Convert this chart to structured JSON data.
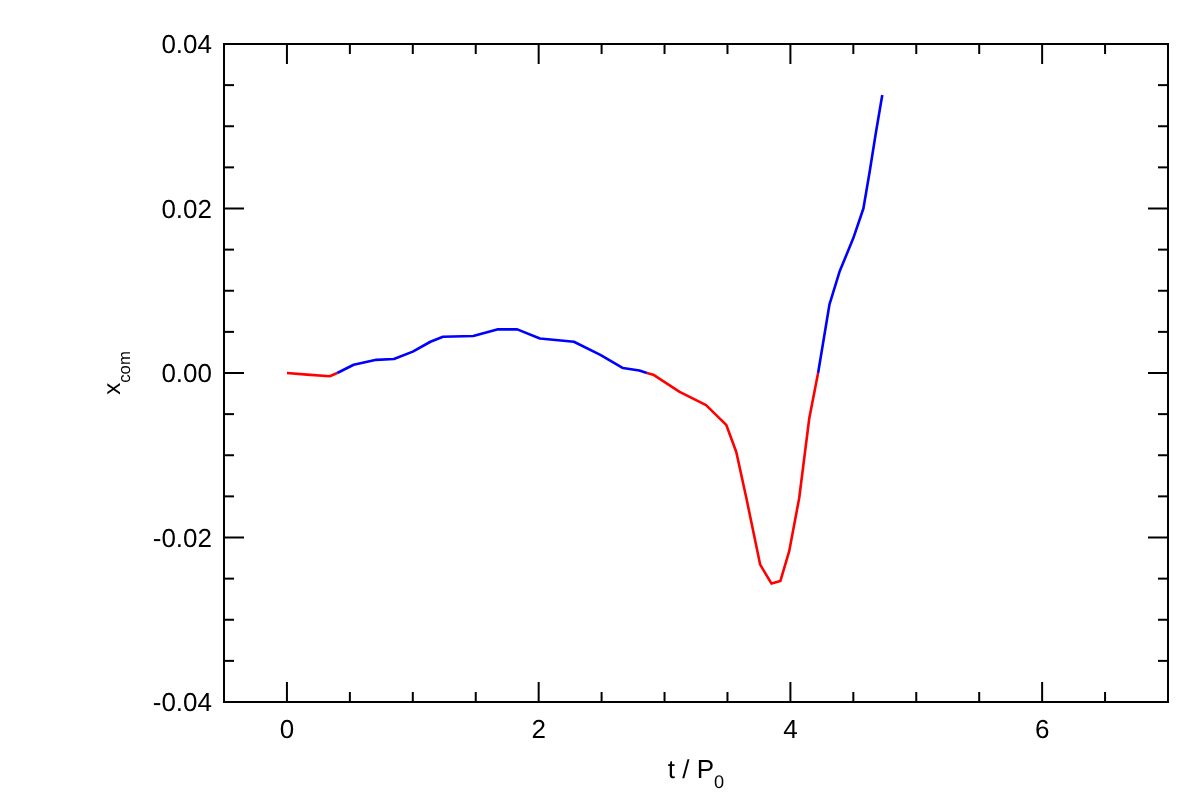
{
  "chart_data": {
    "type": "line",
    "xlabel": "t / P$_{0}$",
    "ylabel": "x$_{com}$",
    "x": [
      0,
      0.16,
      0.34,
      0.4,
      0.53,
      0.71,
      0.85,
      1.0,
      1.14,
      1.24,
      1.48,
      1.67,
      1.83,
      2.01,
      2.28,
      2.49,
      2.67,
      2.8,
      2.86,
      2.91,
      3.12,
      3.33,
      3.49,
      3.57,
      3.65,
      3.76,
      3.85,
      3.92,
      3.99,
      4.07,
      4.15,
      4.22,
      4.31,
      4.39,
      4.5,
      4.58,
      4.63,
      4.68,
      4.73
    ],
    "series": [
      {
        "color": "#ff0000",
        "values": [
          0,
          -0.0002,
          -0.0004,
          0,
          null,
          null,
          null,
          null,
          null,
          null,
          null,
          null,
          null,
          null,
          null,
          null,
          null,
          null,
          0,
          -0.0002,
          -0.0023,
          -0.0039,
          -0.0063,
          -0.0096,
          -0.0152,
          -0.0233,
          -0.0256,
          -0.0253,
          -0.0217,
          -0.0152,
          -0.0055,
          0,
          null,
          null,
          null,
          null,
          null,
          null,
          null
        ]
      },
      {
        "color": "#0000ff",
        "values": [
          null,
          null,
          null,
          0,
          0.001,
          0.0016,
          0.0017,
          0.0026,
          0.0038,
          0.0044,
          0.0045,
          0.0053,
          0.0053,
          0.0042,
          0.0038,
          0.0022,
          0.0006,
          0.0003,
          0,
          null,
          null,
          null,
          null,
          null,
          null,
          null,
          null,
          null,
          null,
          null,
          null,
          0,
          0.0083,
          0.0123,
          0.0164,
          0.02,
          0.0245,
          0.0293,
          0.0338
        ]
      }
    ],
    "xlim": [
      -0.5,
      7
    ],
    "xticks": [
      0,
      {
        "value": 0.5,
        "label": null
      },
      {
        "value": 1,
        "label": null
      },
      {
        "value": 1.5,
        "label": null
      },
      2,
      {
        "value": 2.5,
        "label": null
      },
      {
        "value": 3,
        "label": null
      },
      {
        "value": 3.5,
        "label": null
      },
      4,
      {
        "value": 4.5,
        "label": null
      },
      {
        "value": 5,
        "label": null
      },
      {
        "value": 5.5,
        "label": null
      },
      6,
      {
        "value": 6.5,
        "label": null
      }
    ],
    "ylim": [
      -0.04,
      0.04
    ],
    "yticks": [
      {
        "value": -0.04,
        "label": "-0.04"
      },
      {
        "value": -0.035,
        "label": null
      },
      {
        "value": -0.03,
        "label": null
      },
      {
        "value": -0.025,
        "label": null
      },
      {
        "value": -0.02,
        "label": "-0.02"
      },
      {
        "value": -0.015,
        "label": null
      },
      {
        "value": -0.01,
        "label": null
      },
      {
        "value": -0.005,
        "label": null
      },
      {
        "value": 0,
        "label": "0.00"
      },
      {
        "value": 0.005,
        "label": null
      },
      {
        "value": 0.01,
        "label": null
      },
      {
        "value": 0.015,
        "label": null
      },
      {
        "value": 0.02,
        "label": "0.02"
      },
      {
        "value": 0.025,
        "label": null
      },
      {
        "value": 0.03,
        "label": null
      },
      {
        "value": 0.035,
        "label": null
      },
      {
        "value": 0.04,
        "label": "0.04"
      }
    ],
    "grid": false,
    "marker": "none",
    "line_style": "solid"
  }
}
